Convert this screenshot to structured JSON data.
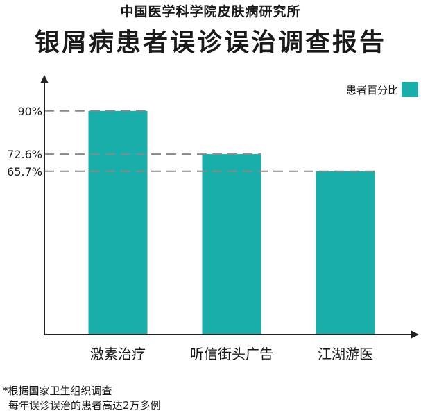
{
  "header": {
    "supertitle": "中国医学科学院皮肤病研究所",
    "title": "银屑病患者误诊误治调查报告"
  },
  "legend": {
    "label": "患者百分比",
    "color": "#1aaeaa"
  },
  "footnote": {
    "line1": "*根据国家卫生组织调查",
    "line2": "每年误诊误治的患者高达2万多例"
  },
  "chart_data": {
    "type": "bar",
    "categories": [
      "激素治疗",
      "听信街头广告",
      "江湖游医"
    ],
    "series": [
      {
        "name": "患者百分比",
        "values": [
          90,
          72.6,
          65.7
        ]
      }
    ],
    "value_labels": [
      "90%",
      "72.6%",
      "65.7%"
    ],
    "ylim": [
      0,
      100
    ],
    "bar_color": "#1aaeaa",
    "guide_line_color": "#888888",
    "axis_color": "#222222"
  }
}
